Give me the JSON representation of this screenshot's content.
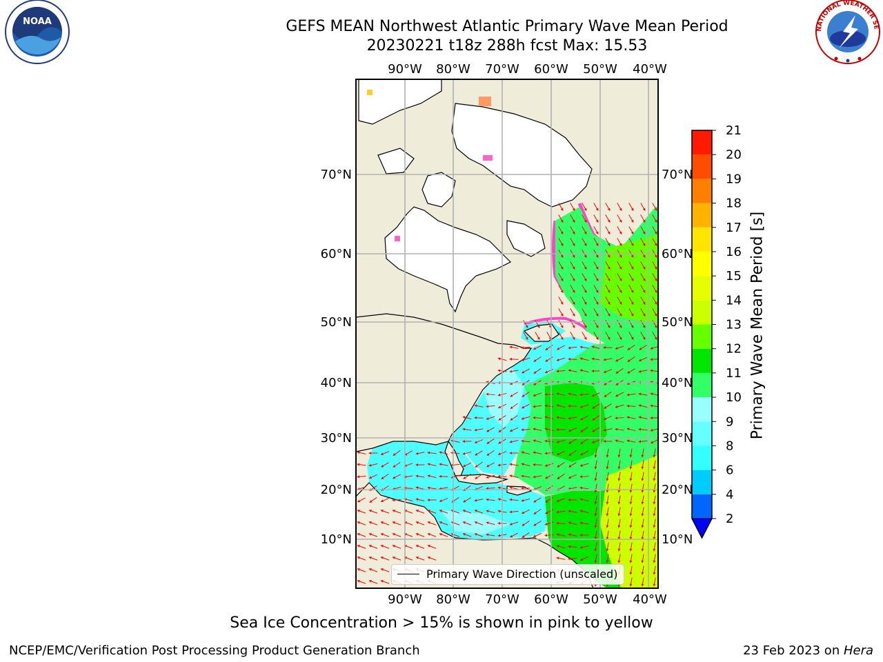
{
  "header": {
    "title_line1": "GEFS MEAN Northwest Atlantic Primary Wave Mean Period",
    "title_line2": "20230221 t18z 288h fcst   Max: 15.53"
  },
  "logos": {
    "left": {
      "name": "noaa-logo",
      "text": "NOAA"
    },
    "right": {
      "name": "nws-logo",
      "text": "NATIONAL WEATHER SERVICE"
    }
  },
  "map": {
    "lon_ticks": [
      "90°W",
      "80°W",
      "70°W",
      "60°W",
      "50°W",
      "40°W"
    ],
    "lat_ticks": [
      "70°N",
      "60°N",
      "50°N",
      "40°N",
      "30°N",
      "20°N",
      "10°N"
    ],
    "legend_label": "Primary Wave Direction (unscaled)",
    "colors": {
      "land": "#efedd9",
      "ice": "#ffffff",
      "grid": "#b0b0b0",
      "arrow": "#ff0000"
    }
  },
  "colorbar": {
    "label": "Primary Wave Mean Period [s]",
    "ticks": [
      "2",
      "4",
      "6",
      "8",
      "9",
      "10",
      "11",
      "12",
      "13",
      "14",
      "15",
      "16",
      "17",
      "18",
      "19",
      "20",
      "21"
    ],
    "colors": [
      "#0066ff",
      "#00ccff",
      "#33ffff",
      "#66ffff",
      "#99ffff",
      "#33ff66",
      "#00e600",
      "#66ff00",
      "#ccff00",
      "#e6ff00",
      "#ffff00",
      "#ffe600",
      "#ffb300",
      "#ff8000",
      "#ff4d00",
      "#ff1a00"
    ],
    "extend_color": "#0000ff"
  },
  "caption": "Sea Ice Concentration > 15% is shown in pink to yellow",
  "footer": {
    "left": "NCEP/EMC/Verification Post Processing Product Generation Branch",
    "right_prefix": "23 Feb 2023 on ",
    "right_machine": "Hera"
  }
}
